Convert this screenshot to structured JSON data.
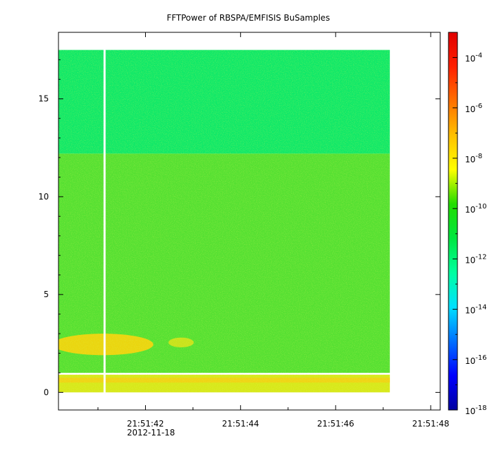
{
  "chart_data": {
    "type": "heatmap",
    "title": "FFTPower of RBSPA/EMFISIS  BuSamples",
    "xlabel": "",
    "ylabel": "",
    "x_ticks": [
      {
        "label": "21:51:42",
        "sublabel": "2012-11-18",
        "t": 42
      },
      {
        "label": "21:51:44",
        "sublabel": "",
        "t": 44
      },
      {
        "label": "21:51:46",
        "sublabel": "",
        "t": 46
      },
      {
        "label": "21:51:48",
        "sublabel": "",
        "t": 48
      }
    ],
    "x_minor_ticks": [
      41,
      43,
      45,
      47
    ],
    "xlim": [
      40.17,
      48.2
    ],
    "ylim": [
      -0.9,
      18.4
    ],
    "y_ticks": [
      0,
      5,
      10,
      15
    ],
    "y_tick_labels": [
      "0",
      "5",
      "10",
      "15"
    ],
    "data_extent": {
      "t_start": 40.17,
      "t_end": 47.14,
      "y_start": 0,
      "y_end": 17.5
    },
    "gap": {
      "t": 41.14
    },
    "colorbar": {
      "scale": "log",
      "range": [
        1e-18,
        0.001
      ],
      "tick_exponents": [
        -18,
        -16,
        -14,
        -12,
        -10,
        -8,
        -6,
        -4
      ],
      "tick_base": "10",
      "colors": [
        "#0000a0",
        "#0000ff",
        "#0070ff",
        "#00e0ff",
        "#00ffa0",
        "#00e640",
        "#22dd00",
        "#ffff00",
        "#ffc000",
        "#ff7000",
        "#ff2000",
        "#e00000"
      ]
    },
    "regions": [
      {
        "name": "upper band",
        "y": [
          12.2,
          17.5
        ],
        "level": "1e-12",
        "color": "#10e868"
      },
      {
        "name": "background",
        "y": [
          1.0,
          12.2
        ],
        "level": "1e-10",
        "color": "#55e032"
      },
      {
        "name": "bright emission",
        "t": [
          40.17,
          42.05
        ],
        "y": [
          1.9,
          3.0
        ],
        "level": "1e-8",
        "color": "#f2d40e"
      },
      {
        "name": "spot",
        "t": [
          42.6,
          42.9
        ],
        "y": [
          2.3,
          2.8
        ],
        "level": "1e-9",
        "color": "#cfe21a"
      },
      {
        "name": "low band",
        "y": [
          0,
          0.9
        ],
        "level": "1e-9",
        "color": "#d8e81a"
      }
    ]
  }
}
